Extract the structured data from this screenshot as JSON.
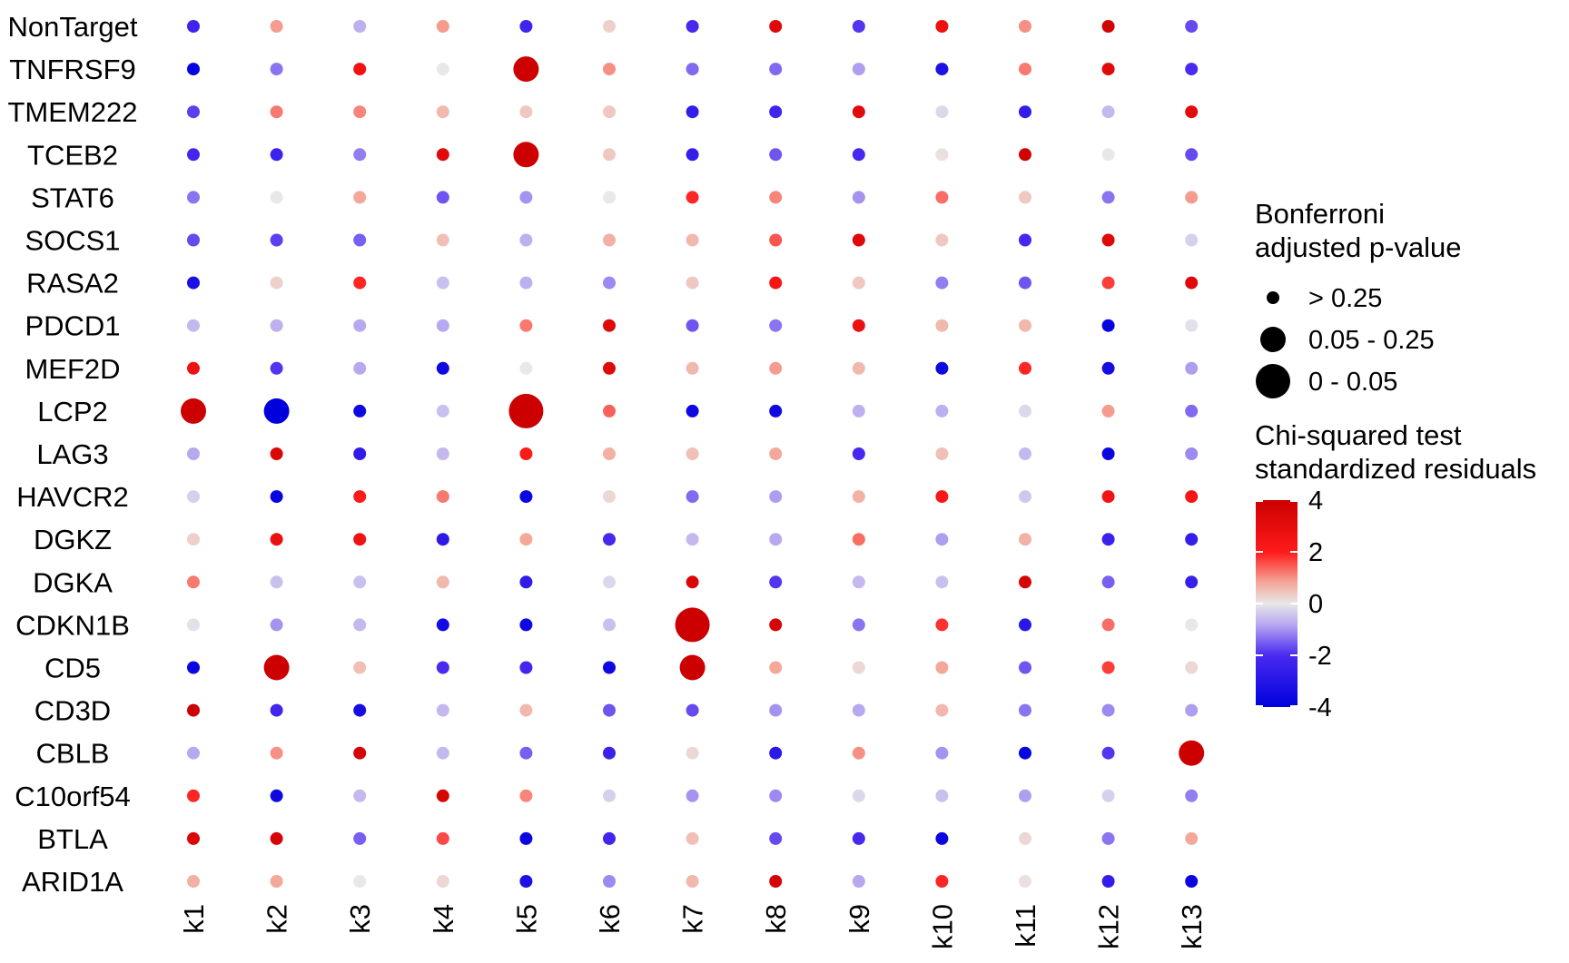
{
  "chart_data": {
    "type": "dot-heatmap",
    "rows": [
      "NonTarget",
      "TNFRSF9",
      "TMEM222",
      "TCEB2",
      "STAT6",
      "SOCS1",
      "RASA2",
      "PDCD1",
      "MEF2D",
      "LCP2",
      "LAG3",
      "HAVCR2",
      "DGKZ",
      "DGKA",
      "CDKN1B",
      "CD5",
      "CD3D",
      "CBLB",
      "C10orf54",
      "BTLA",
      "ARID1A"
    ],
    "columns": [
      "k1",
      "k2",
      "k3",
      "k4",
      "k5",
      "k6",
      "k7",
      "k8",
      "k9",
      "k10",
      "k11",
      "k12",
      "k13"
    ],
    "residuals": [
      [
        -2.3,
        0.9,
        -0.7,
        0.9,
        -2.3,
        0.3,
        -2.1,
        3.3,
        -1.9,
        2.7,
        1.0,
        3.8,
        -1.7
      ],
      [
        -3.8,
        -1.3,
        2.6,
        0,
        4.0,
        1.0,
        -1.4,
        -1.4,
        -0.9,
        -3.2,
        1.2,
        3.2,
        -2.0
      ],
      [
        -1.8,
        1.2,
        1.1,
        0.6,
        0.4,
        0.4,
        -2.6,
        -2.3,
        3.2,
        -0.2,
        -2.6,
        -0.6,
        3.1
      ],
      [
        -2.2,
        -2.4,
        -1.2,
        3.2,
        4.0,
        0.4,
        -2.6,
        -1.6,
        -2.1,
        0.1,
        3.9,
        0,
        -1.7
      ],
      [
        -1.3,
        0,
        0.8,
        -1.6,
        -1.0,
        0,
        1.9,
        1.1,
        -1.0,
        1.3,
        0.4,
        -1.3,
        0.9
      ],
      [
        -1.7,
        -1.8,
        -1.5,
        0.5,
        -0.7,
        0.7,
        0.6,
        1.5,
        3.3,
        0.4,
        -2.1,
        3.3,
        -0.3
      ],
      [
        -3.3,
        0.3,
        1.9,
        -0.5,
        -0.7,
        -1.1,
        0.4,
        2.4,
        0.4,
        -1.2,
        -1.6,
        1.7,
        3.3
      ],
      [
        -0.6,
        -0.7,
        -0.8,
        -0.8,
        1.2,
        3.3,
        -1.6,
        -1.3,
        2.8,
        0.6,
        0.6,
        -3.8,
        -0.1
      ],
      [
        2.6,
        -1.9,
        -0.8,
        -3.6,
        0,
        3.3,
        0.6,
        0.9,
        0.6,
        -3.6,
        1.9,
        -3.4,
        -0.9
      ],
      [
        4.0,
        -4.0,
        -3.6,
        -0.5,
        4.0,
        1.4,
        -3.6,
        -3.6,
        -0.7,
        -0.7,
        -0.2,
        0.9,
        -1.4
      ],
      [
        -0.8,
        3.5,
        -2.7,
        -0.6,
        2.0,
        0.7,
        0.5,
        0.8,
        -2.1,
        0.5,
        -0.6,
        -3.7,
        -1.1
      ],
      [
        -0.3,
        -3.8,
        2.0,
        1.2,
        -3.7,
        0.2,
        -1.4,
        -0.9,
        0.7,
        2.2,
        -0.4,
        2.5,
        2.4
      ],
      [
        0.3,
        2.8,
        2.6,
        -2.8,
        0.8,
        -2.1,
        -0.6,
        -0.8,
        1.3,
        -0.9,
        0.7,
        -2.4,
        -2.6
      ],
      [
        1.2,
        -0.5,
        -0.5,
        0.6,
        -2.7,
        -0.2,
        3.5,
        -1.9,
        -0.6,
        -0.5,
        3.7,
        -1.5,
        -2.5
      ],
      [
        -0.1,
        -1.0,
        -0.6,
        -3.5,
        -3.6,
        -0.5,
        4.0,
        3.7,
        -1.3,
        1.8,
        -2.9,
        1.3,
        0
      ],
      [
        -3.7,
        4.0,
        0.5,
        -2.0,
        -2.2,
        -3.6,
        4.0,
        0.8,
        0.2,
        0.8,
        -1.6,
        1.7,
        0.2
      ],
      [
        4.0,
        -2.2,
        -3.4,
        -0.6,
        0.6,
        -1.6,
        -1.7,
        -1.0,
        -0.8,
        0.6,
        -1.3,
        -1.1,
        -0.9
      ],
      [
        -0.8,
        1.0,
        3.6,
        -0.6,
        -1.5,
        -2.4,
        0.2,
        -2.8,
        1.0,
        -1.0,
        -3.8,
        -1.9,
        4.0
      ],
      [
        1.9,
        -3.6,
        -0.6,
        3.6,
        1.1,
        -0.3,
        -1.0,
        -1.1,
        -0.2,
        -0.5,
        -0.9,
        -0.3,
        -1.2
      ],
      [
        3.5,
        3.6,
        -1.5,
        1.6,
        -3.7,
        -2.2,
        0.5,
        -1.7,
        -2.1,
        -3.7,
        0.2,
        -1.3,
        0.8
      ],
      [
        0.7,
        0.8,
        0,
        0.2,
        -3.2,
        -1.1,
        0.6,
        3.7,
        -0.8,
        1.9,
        0.1,
        -2.6,
        -3.7
      ]
    ],
    "pvalue_category": [
      [
        0,
        0,
        0,
        0,
        0,
        0,
        0,
        0,
        0,
        0,
        0,
        0,
        0
      ],
      [
        0,
        0,
        0,
        0,
        1,
        0,
        0,
        0,
        0,
        0,
        0,
        0,
        0
      ],
      [
        0,
        0,
        0,
        0,
        0,
        0,
        0,
        0,
        0,
        0,
        0,
        0,
        0
      ],
      [
        0,
        0,
        0,
        0,
        1,
        0,
        0,
        0,
        0,
        0,
        0,
        0,
        0
      ],
      [
        0,
        0,
        0,
        0,
        0,
        0,
        0,
        0,
        0,
        0,
        0,
        0,
        0
      ],
      [
        0,
        0,
        0,
        0,
        0,
        0,
        0,
        0,
        0,
        0,
        0,
        0,
        0
      ],
      [
        0,
        0,
        0,
        0,
        0,
        0,
        0,
        0,
        0,
        0,
        0,
        0,
        0
      ],
      [
        0,
        0,
        0,
        0,
        0,
        0,
        0,
        0,
        0,
        0,
        0,
        0,
        0
      ],
      [
        0,
        0,
        0,
        0,
        0,
        0,
        0,
        0,
        0,
        0,
        0,
        0,
        0
      ],
      [
        1,
        1,
        0,
        0,
        2,
        0,
        0,
        0,
        0,
        0,
        0,
        0,
        0
      ],
      [
        0,
        0,
        0,
        0,
        0,
        0,
        0,
        0,
        0,
        0,
        0,
        0,
        0
      ],
      [
        0,
        0,
        0,
        0,
        0,
        0,
        0,
        0,
        0,
        0,
        0,
        0,
        0
      ],
      [
        0,
        0,
        0,
        0,
        0,
        0,
        0,
        0,
        0,
        0,
        0,
        0,
        0
      ],
      [
        0,
        0,
        0,
        0,
        0,
        0,
        0,
        0,
        0,
        0,
        0,
        0,
        0
      ],
      [
        0,
        0,
        0,
        0,
        0,
        0,
        2,
        0,
        0,
        0,
        0,
        0,
        0
      ],
      [
        0,
        1,
        0,
        0,
        0,
        0,
        1,
        0,
        0,
        0,
        0,
        0,
        0
      ],
      [
        0,
        0,
        0,
        0,
        0,
        0,
        0,
        0,
        0,
        0,
        0,
        0,
        0
      ],
      [
        0,
        0,
        0,
        0,
        0,
        0,
        0,
        0,
        0,
        0,
        0,
        0,
        1
      ],
      [
        0,
        0,
        0,
        0,
        0,
        0,
        0,
        0,
        0,
        0,
        0,
        0,
        0
      ],
      [
        0,
        0,
        0,
        0,
        0,
        0,
        0,
        0,
        0,
        0,
        0,
        0,
        0
      ],
      [
        0,
        0,
        0,
        0,
        0,
        0,
        0,
        0,
        0,
        0,
        0,
        0,
        0
      ]
    ],
    "size_legend": {
      "title_lines": [
        "Bonferroni",
        "adjusted p-value"
      ],
      "labels": [
        "> 0.25",
        "0.05 - 0.25",
        "0 - 0.05"
      ]
    },
    "color_legend": {
      "title_lines": [
        "Chi-squared test",
        "standardized residuals"
      ],
      "ticks": [
        4,
        2,
        0,
        -2,
        -4
      ],
      "tick_labels": [
        "4",
        "2",
        "0",
        "-2",
        "-4"
      ],
      "range": [
        -4,
        4
      ],
      "colors": {
        "low": "#0000ff",
        "mid": "#e8e8e8",
        "high": "#cc0000"
      }
    }
  }
}
